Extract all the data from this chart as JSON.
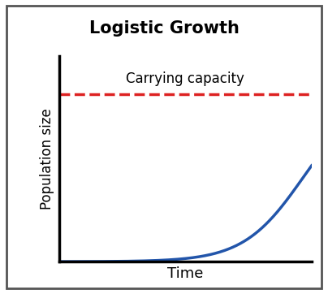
{
  "title": "Logistic Growth",
  "title_bg_color": "#c8b482",
  "title_fontsize": 15,
  "xlabel": "Time",
  "ylabel": "Population size",
  "xlabel_fontsize": 13,
  "ylabel_fontsize": 12,
  "carrying_capacity_label": "Carrying capacity",
  "carrying_capacity_color": "#dd2222",
  "logistic_color": "#2255aa",
  "logistic_linewidth": 2.5,
  "dashed_linewidth": 2.5,
  "background_color": "#ffffff",
  "outer_border_color": "#555555",
  "plot_area_bg": "#ffffff",
  "xlim": [
    0,
    10
  ],
  "K": 0.88,
  "N0": 0.025,
  "r": 0.85,
  "inflection_shift": 5.5
}
